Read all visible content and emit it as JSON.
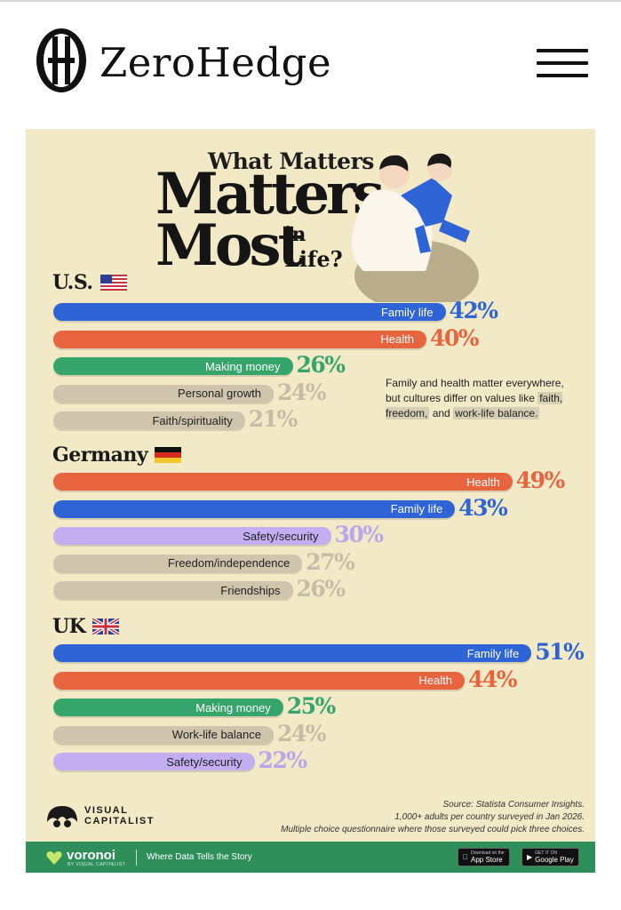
{
  "header": {
    "brand": "ZeroHedge",
    "menu_icon": "hamburger-menu-icon"
  },
  "infographic": {
    "title_small": "What Matters",
    "title_big_1": "Matters",
    "title_big_2": "Most",
    "title_in": "in",
    "title_life": "Life?",
    "note": {
      "part1": "Family and health matter everywhere, but cultures differ on values like ",
      "hl1": "faith, freedom,",
      "part2": " and ",
      "hl2": "work-life balance."
    },
    "countries": [
      {
        "name": "U.S.",
        "flag": "us-flag-icon"
      },
      {
        "name": "Germany",
        "flag": "germany-flag-icon"
      },
      {
        "name": "UK",
        "flag": "uk-flag-icon"
      }
    ],
    "colors": {
      "family": "#2f64d6",
      "health": "#e8643f",
      "money": "#35a56b",
      "grey": "#cfc5ad",
      "lilac": "#c2aef0",
      "background": "#f2e9c6"
    },
    "brand_logo_text_1": "VISUAL",
    "brand_logo_text_2": "CAPITALIST",
    "source_1": "Source: Statista Consumer Insights.",
    "source_2": "1,000+ adults per country surveyed in Jan 2026.",
    "source_3": "Multiple choice questionnaire where those surveyed could pick three choices.",
    "footer": {
      "name": "voronoi",
      "by": "BY VISUAL CAPITALIST",
      "tagline": "Where Data Tells the Story",
      "app_store_small": "Download on the",
      "app_store": "App Store",
      "google_small": "GET IT ON",
      "google": "Google Play"
    }
  },
  "chart_data": {
    "type": "bar",
    "title": "What Matters Most in Life?",
    "groups": [
      {
        "country": "U.S.",
        "bars": [
          {
            "label": "Family life",
            "value": 42,
            "value_label": "42%",
            "color": "family"
          },
          {
            "label": "Health",
            "value": 40,
            "value_label": "40%",
            "color": "health"
          },
          {
            "label": "Making money",
            "value": 26,
            "value_label": "26%",
            "color": "money"
          },
          {
            "label": "Personal growth",
            "value": 24,
            "value_label": "24%",
            "color": "grey"
          },
          {
            "label": "Faith/spirituality",
            "value": 21,
            "value_label": "21%",
            "color": "grey"
          }
        ]
      },
      {
        "country": "Germany",
        "bars": [
          {
            "label": "Health",
            "value": 49,
            "value_label": "49%",
            "color": "health"
          },
          {
            "label": "Family life",
            "value": 43,
            "value_label": "43%",
            "color": "family"
          },
          {
            "label": "Safety/security",
            "value": 30,
            "value_label": "30%",
            "color": "lilac"
          },
          {
            "label": "Freedom/independence",
            "value": 27,
            "value_label": "27%",
            "color": "grey"
          },
          {
            "label": "Friendships",
            "value": 26,
            "value_label": "26%",
            "color": "grey"
          }
        ]
      },
      {
        "country": "UK",
        "bars": [
          {
            "label": "Family life",
            "value": 51,
            "value_label": "51%",
            "color": "family"
          },
          {
            "label": "Health",
            "value": 44,
            "value_label": "44%",
            "color": "health"
          },
          {
            "label": "Making money",
            "value": 25,
            "value_label": "25%",
            "color": "money"
          },
          {
            "label": "Work-life balance",
            "value": 24,
            "value_label": "24%",
            "color": "grey"
          },
          {
            "label": "Safety/security",
            "value": 22,
            "value_label": "22%",
            "color": "lilac"
          }
        ]
      }
    ]
  }
}
